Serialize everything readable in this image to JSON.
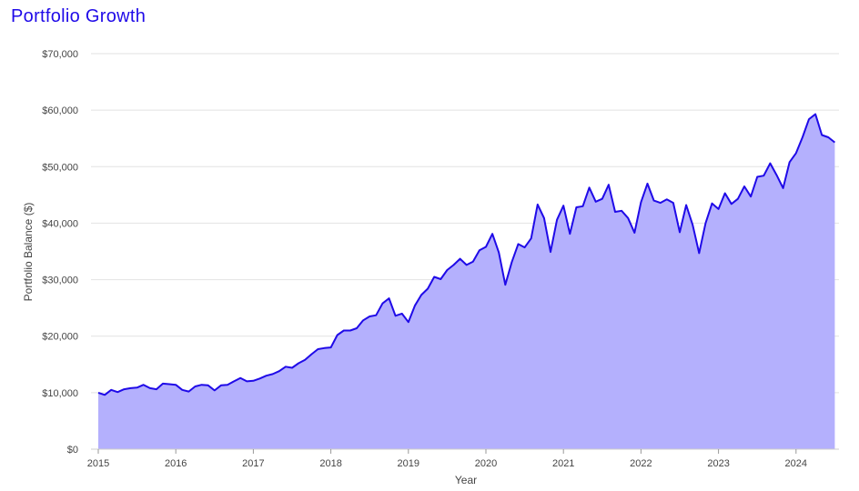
{
  "chart_data": {
    "type": "area",
    "title": "Portfolio Growth",
    "xlabel": "Year",
    "ylabel": "Portfolio Balance ($)",
    "xlim": [
      2015,
      2024.55
    ],
    "ylim": [
      0,
      70000
    ],
    "grid": true,
    "legend": "none",
    "x_ticks": [
      "2015",
      "2016",
      "2017",
      "2018",
      "2019",
      "2020",
      "2021",
      "2022",
      "2023",
      "2024"
    ],
    "y_ticks": [
      "$0",
      "$10,000",
      "$20,000",
      "$30,000",
      "$40,000",
      "$50,000",
      "$60,000",
      "$70,000"
    ],
    "series": [
      {
        "line_color": "#1f0ae8",
        "fill_color": "#b4b0fd",
        "x": [
          2015.0,
          2015.083,
          2015.167,
          2015.25,
          2015.333,
          2015.417,
          2015.5,
          2015.583,
          2015.667,
          2015.75,
          2015.833,
          2015.917,
          2016.0,
          2016.083,
          2016.167,
          2016.25,
          2016.333,
          2016.417,
          2016.5,
          2016.583,
          2016.667,
          2016.75,
          2016.833,
          2016.917,
          2017.0,
          2017.083,
          2017.167,
          2017.25,
          2017.333,
          2017.417,
          2017.5,
          2017.583,
          2017.667,
          2017.75,
          2017.833,
          2017.917,
          2018.0,
          2018.083,
          2018.167,
          2018.25,
          2018.333,
          2018.417,
          2018.5,
          2018.583,
          2018.667,
          2018.75,
          2018.833,
          2018.917,
          2019.0,
          2019.083,
          2019.167,
          2019.25,
          2019.333,
          2019.417,
          2019.5,
          2019.583,
          2019.667,
          2019.75,
          2019.833,
          2019.917,
          2020.0,
          2020.083,
          2020.167,
          2020.25,
          2020.333,
          2020.417,
          2020.5,
          2020.583,
          2020.667,
          2020.75,
          2020.833,
          2020.917,
          2021.0,
          2021.083,
          2021.167,
          2021.25,
          2021.333,
          2021.417,
          2021.5,
          2021.583,
          2021.667,
          2021.75,
          2021.833,
          2021.917,
          2022.0,
          2022.083,
          2022.167,
          2022.25,
          2022.333,
          2022.417,
          2022.5,
          2022.583,
          2022.667,
          2022.75,
          2022.833,
          2022.917,
          2023.0,
          2023.083,
          2023.167,
          2023.25,
          2023.333,
          2023.417,
          2023.5,
          2023.583,
          2023.667,
          2023.75,
          2023.833,
          2023.917,
          2024.0,
          2024.083,
          2024.167,
          2024.25,
          2024.333,
          2024.417,
          2024.5
        ],
        "values": [
          10000,
          9600,
          10500,
          10100,
          10600,
          10800,
          10900,
          11400,
          10800,
          10600,
          11600,
          11500,
          11400,
          10500,
          10200,
          11100,
          11400,
          11300,
          10400,
          11300,
          11400,
          12000,
          12600,
          12000,
          12100,
          12500,
          13000,
          13300,
          13800,
          14600,
          14400,
          15200,
          15800,
          16800,
          17700,
          17900,
          18000,
          20200,
          21000,
          21000,
          21400,
          22800,
          23500,
          23700,
          25800,
          26700,
          23600,
          24000,
          22500,
          25400,
          27300,
          28400,
          30500,
          30100,
          31700,
          32600,
          33700,
          32600,
          33200,
          35200,
          35800,
          38100,
          34800,
          29100,
          33100,
          36300,
          35700,
          37300,
          43300,
          40900,
          34900,
          40600,
          43100,
          38100,
          42800,
          43000,
          46300,
          43800,
          44300,
          46800,
          42000,
          42200,
          40900,
          38300,
          43700,
          47000,
          44000,
          43600,
          44200,
          43600,
          38400,
          43200,
          39700,
          34700,
          40000,
          43500,
          42500,
          45300,
          43400,
          44300,
          46500,
          44700,
          48200,
          48400,
          50600,
          48500,
          46200,
          50800,
          52400,
          55200,
          58400,
          59300,
          55600,
          55200,
          54300
        ]
      }
    ]
  }
}
